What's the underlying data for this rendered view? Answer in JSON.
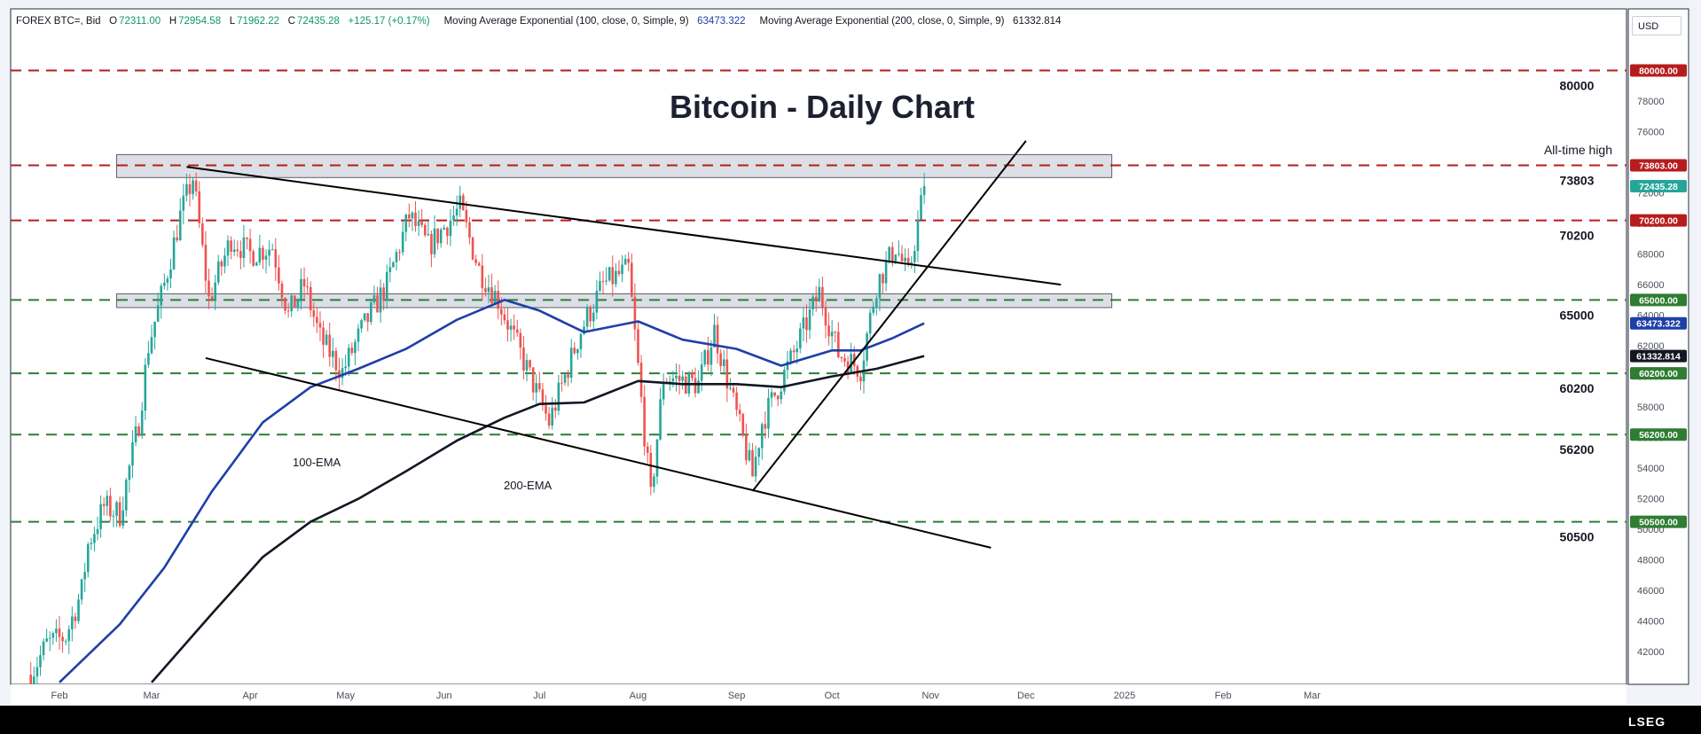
{
  "header": {
    "symbol": "FOREX BTC=, Bid",
    "open_label": "O",
    "open": "72311.00",
    "high_label": "H",
    "high": "72954.58",
    "low_label": "L",
    "low": "71962.22",
    "close_label": "C",
    "close": "72435.28",
    "change": "+125.17 (+0.17%)",
    "ema100_label": "Moving Average Exponential (100, close, 0, Simple, 9)",
    "ema100_value": "63473.322",
    "ema200_label": "Moving Average Exponential (200, close, 0, Simple, 9)",
    "ema200_value": "61332.814"
  },
  "currency": "USD",
  "logo": "LSEG",
  "colors": {
    "background": "#ffffff",
    "up": "#26a69a",
    "down": "#ef5350",
    "red_level": "#b71c1c",
    "green_level": "#2e7d32",
    "ema100": "#1e3fa8",
    "ema200": "#131722",
    "trendline": "#000000",
    "zone": "#d6d9e0"
  },
  "chart_data": {
    "type": "line",
    "title": "Bitcoin - Daily Chart",
    "ylim": [
      40000,
      82000
    ],
    "y_ticks": [
      "42000",
      "44000",
      "46000",
      "48000",
      "50000",
      "52000",
      "54000",
      "56000",
      "58000",
      "60000",
      "62000",
      "64000",
      "66000",
      "68000",
      "70000",
      "72000",
      "74000",
      "76000",
      "78000",
      "80000"
    ],
    "x_ticks": [
      "Feb",
      "Mar",
      "Apr",
      "May",
      "Jun",
      "Jul",
      "Aug",
      "Sep",
      "Oct",
      "Nov",
      "Dec",
      "2025",
      "Feb",
      "Mar"
    ],
    "resistance_levels": [
      {
        "value": 80000,
        "label": "80000",
        "tag": "80000.00",
        "color": "red"
      },
      {
        "value": 73803,
        "label": "73803",
        "tag": "73803.00",
        "color": "red"
      },
      {
        "value": 70200,
        "label": "70200",
        "tag": "70200.00",
        "color": "red"
      }
    ],
    "support_levels": [
      {
        "value": 65000,
        "label": "65000",
        "tag": "65000.00",
        "color": "green"
      },
      {
        "value": 60200,
        "label": "60200",
        "tag": "60200.00",
        "color": "green"
      },
      {
        "value": 56200,
        "label": "56200",
        "tag": "56200.00",
        "color": "green"
      },
      {
        "value": 50500,
        "label": "50500",
        "tag": "50500.00",
        "color": "green"
      }
    ],
    "price_tags": [
      {
        "value": 72435.28,
        "tag": "72435.28",
        "color": "up"
      },
      {
        "value": 63473.322,
        "tag": "63473.322",
        "color": "ema100"
      },
      {
        "value": 61332.814,
        "tag": "61332.814",
        "color": "ema200"
      }
    ],
    "annotations": {
      "ath": "All-time high",
      "ema100": "100-EMA",
      "ema200": "200-EMA"
    },
    "price_path": {
      "x": [
        "2024-01-23",
        "2024-01-28",
        "2024-02-03",
        "2024-02-08",
        "2024-02-10",
        "2024-02-15",
        "2024-02-20",
        "2024-02-26",
        "2024-02-29",
        "2024-03-05",
        "2024-03-10",
        "2024-03-14",
        "2024-03-19",
        "2024-03-26",
        "2024-04-01",
        "2024-04-08",
        "2024-04-13",
        "2024-04-18",
        "2024-04-23",
        "2024-04-30",
        "2024-05-06",
        "2024-05-14",
        "2024-05-21",
        "2024-05-27",
        "2024-06-06",
        "2024-06-12",
        "2024-06-18",
        "2024-06-24",
        "2024-07-04",
        "2024-07-14",
        "2024-07-21",
        "2024-07-29",
        "2024-08-05",
        "2024-08-09",
        "2024-08-20",
        "2024-08-25",
        "2024-09-06",
        "2024-09-09",
        "2024-09-19",
        "2024-09-27",
        "2024-10-03",
        "2024-10-10",
        "2024-10-15",
        "2024-10-21",
        "2024-10-25",
        "2024-10-28",
        "2024-10-30"
      ],
      "close": [
        40500,
        42500,
        43000,
        46000,
        49000,
        51500,
        51000,
        57000,
        62000,
        66000,
        70500,
        73000,
        65000,
        69000,
        68000,
        68500,
        64000,
        66000,
        62500,
        60300,
        63000,
        66000,
        70500,
        68500,
        71000,
        67000,
        65000,
        62000,
        57000,
        63000,
        66000,
        67000,
        52000,
        60000,
        59500,
        63000,
        53500,
        57000,
        61500,
        65500,
        61500,
        60500,
        66000,
        68500,
        66500,
        70000,
        72435
      ]
    },
    "ema100": {
      "x": [
        "2024-02-01",
        "2024-02-20",
        "2024-03-05",
        "2024-03-20",
        "2024-04-05",
        "2024-04-20",
        "2024-05-05",
        "2024-05-20",
        "2024-06-05",
        "2024-06-20",
        "2024-07-01",
        "2024-07-15",
        "2024-08-01",
        "2024-08-15",
        "2024-09-01",
        "2024-09-15",
        "2024-10-01",
        "2024-10-10",
        "2024-10-20",
        "2024-10-30"
      ],
      "y": [
        40000,
        43800,
        47500,
        52500,
        57000,
        59300,
        60500,
        61800,
        63700,
        65000,
        64300,
        62900,
        63600,
        62400,
        61800,
        60700,
        61700,
        61700,
        62500,
        63473
      ]
    },
    "ema200": {
      "x": [
        "2024-03-01",
        "2024-03-20",
        "2024-04-05",
        "2024-04-20",
        "2024-05-05",
        "2024-05-20",
        "2024-06-05",
        "2024-06-20",
        "2024-07-01",
        "2024-07-15",
        "2024-08-01",
        "2024-08-15",
        "2024-09-01",
        "2024-09-15",
        "2024-10-01",
        "2024-10-15",
        "2024-10-30"
      ],
      "y": [
        40000,
        44500,
        48200,
        50500,
        52000,
        53800,
        55800,
        57300,
        58200,
        58300,
        59700,
        59500,
        59500,
        59300,
        60000,
        60500,
        61333
      ]
    },
    "trendlines": [
      {
        "name": "upper-falling-resistance",
        "x": [
          "2024-03-12",
          "2024-12-12"
        ],
        "y": [
          73700,
          66000
        ]
      },
      {
        "name": "lower-falling-support",
        "x": [
          "2024-03-18",
          "2024-11-20"
        ],
        "y": [
          61200,
          48800
        ]
      },
      {
        "name": "rising-support",
        "x": [
          "2024-09-06",
          "2024-12-01"
        ],
        "y": [
          52500,
          75400
        ]
      }
    ],
    "zones": [
      {
        "name": "ath-zone",
        "x": [
          "2024-02-19",
          "2024-12-28"
        ],
        "y": [
          73000,
          74500
        ]
      },
      {
        "name": "support-zone",
        "x": [
          "2024-02-19",
          "2024-12-28"
        ],
        "y": [
          64500,
          65400
        ]
      }
    ]
  }
}
